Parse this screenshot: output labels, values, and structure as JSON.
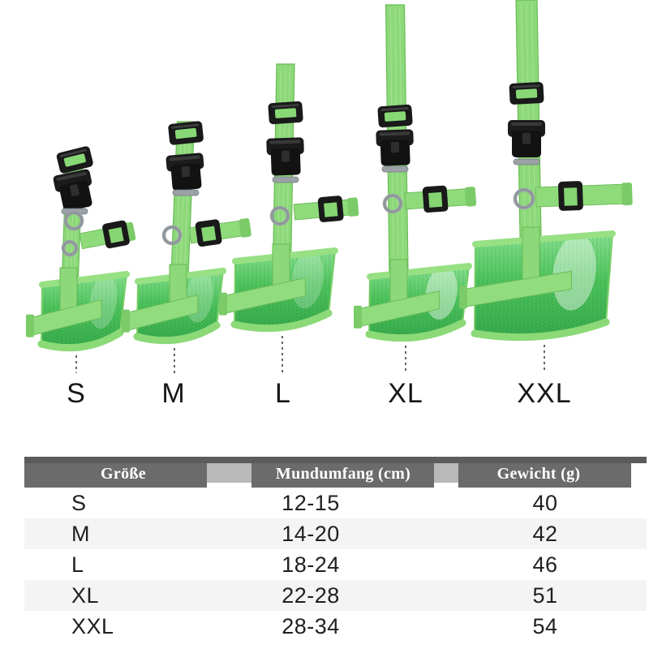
{
  "product_display": {
    "sizes": [
      {
        "label": "S"
      },
      {
        "label": "M"
      },
      {
        "label": "L"
      },
      {
        "label": "XL"
      },
      {
        "label": "XXL"
      }
    ],
    "colors": {
      "webbing_green": "#8dd87a",
      "mesh_green": "#46bf55",
      "buckle_black": "#191919",
      "metal_gray": "#9ba2a7"
    }
  },
  "size_table": {
    "headers": [
      "Größe",
      "Mundumfang (cm)",
      "Gewicht (g)"
    ],
    "rows": [
      {
        "size": "S",
        "circumference_cm": "12-15",
        "weight_g": "40"
      },
      {
        "size": "M",
        "circumference_cm": "14-20",
        "weight_g": "42"
      },
      {
        "size": "L",
        "circumference_cm": "18-24",
        "weight_g": "46"
      },
      {
        "size": "XL",
        "circumference_cm": "22-28",
        "weight_g": "51"
      },
      {
        "size": "XXL",
        "circumference_cm": "28-34",
        "weight_g": "54"
      }
    ],
    "style": {
      "header_bg": "#6b6b6b",
      "header_text": "#ffffff",
      "alt_row_bg": "#f4f4f4"
    }
  },
  "chart_data": {
    "type": "table",
    "title": "Dog muzzle size chart",
    "columns": [
      "Größe",
      "Mundumfang (cm)",
      "Gewicht (g)"
    ],
    "rows": [
      [
        "S",
        "12-15",
        "40"
      ],
      [
        "M",
        "14-20",
        "42"
      ],
      [
        "L",
        "18-24",
        "46"
      ],
      [
        "XL",
        "22-28",
        "51"
      ],
      [
        "XXL",
        "28-34",
        "54"
      ]
    ]
  }
}
